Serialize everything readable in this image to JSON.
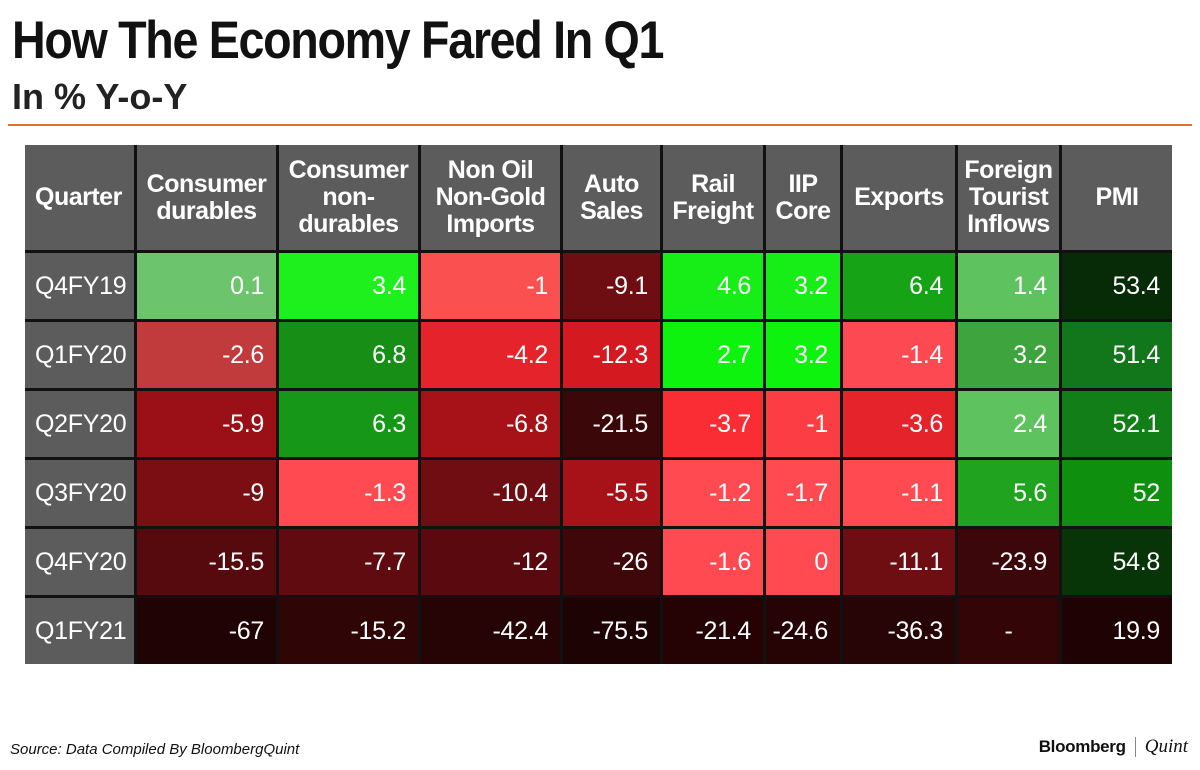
{
  "header": {
    "title": "How The Economy Fared In Q1",
    "subtitle": "In % Y-o-Y"
  },
  "footer": {
    "source": "Source: Data Compiled By BloombergQuint",
    "brand_primary": "Bloomberg",
    "brand_secondary": "Quint"
  },
  "colors": {
    "header_bg": "#5c5c5c",
    "accent_rule": "#e0712b",
    "grid": "#111111"
  },
  "chart_data": {
    "type": "heatmap",
    "title": "How The Economy Fared In Q1",
    "subtitle": "In % Y-o-Y",
    "row_header": "Quarter",
    "columns": [
      {
        "label": "Consumer durables",
        "lines": [
          "Consumer",
          "durables"
        ]
      },
      {
        "label": "Consumer non-durables",
        "lines": [
          "Consumer",
          "non-",
          "durables"
        ]
      },
      {
        "label": "Non Oil Non-Gold Imports",
        "lines": [
          "Non Oil",
          "Non-Gold",
          "Imports"
        ]
      },
      {
        "label": "Auto Sales",
        "lines": [
          "Auto",
          "Sales"
        ]
      },
      {
        "label": "Rail Freight",
        "lines": [
          "Rail",
          "Freight"
        ]
      },
      {
        "label": "IIP Core",
        "lines": [
          "IIP",
          "Core"
        ]
      },
      {
        "label": "Exports",
        "lines": [
          "Exports"
        ]
      },
      {
        "label": "Foreign Tourist Inflows",
        "lines": [
          "Foreign",
          "Tourist",
          "Inflows"
        ]
      },
      {
        "label": "PMI",
        "lines": [
          "PMI"
        ]
      }
    ],
    "rows": [
      "Q4FY19",
      "Q1FY20",
      "Q2FY20",
      "Q3FY20",
      "Q4FY20",
      "Q1FY21"
    ],
    "values": [
      [
        "0.1",
        "3.4",
        "-1",
        "-9.1",
        "4.6",
        "3.2",
        "6.4",
        "1.4",
        "53.4"
      ],
      [
        "-2.6",
        "6.8",
        "-4.2",
        "-12.3",
        "2.7",
        "3.2",
        "-1.4",
        "3.2",
        "51.4"
      ],
      [
        "-5.9",
        "6.3",
        "-6.8",
        "-21.5",
        "-3.7",
        "-1",
        "-3.6",
        "2.4",
        "52.1"
      ],
      [
        "-9",
        "-1.3",
        "-10.4",
        "-5.5",
        "-1.2",
        "-1.7",
        "-1.1",
        "5.6",
        "52"
      ],
      [
        "-15.5",
        "-7.7",
        "-12",
        "-26",
        "-1.6",
        "0",
        "-11.1",
        "-23.9",
        "54.8"
      ],
      [
        "-67",
        "-15.2",
        "-42.4",
        "-75.5",
        "-21.4",
        "-24.6",
        "-36.3",
        "-",
        "19.9"
      ]
    ],
    "cell_colors": [
      [
        "#6cc56c",
        "#1ef01e",
        "#fb5050",
        "#6e0e12",
        "#17ed17",
        "#17ed17",
        "#16a316",
        "#5ec25e",
        "#062b06"
      ],
      [
        "#c13a3c",
        "#178f17",
        "#e5232a",
        "#d41920",
        "#0ef30e",
        "#0ef30e",
        "#fd4a52",
        "#3ea43e",
        "#12761a"
      ],
      [
        "#9a1016",
        "#179717",
        "#a71218",
        "#3c0708",
        "#fa2d34",
        "#fc3d43",
        "#e5232a",
        "#5ec25e",
        "#117e18"
      ],
      [
        "#7a0e12",
        "#ff4a52",
        "#6f0d12",
        "#a71218",
        "#ff4a52",
        "#ff4a52",
        "#ff4a52",
        "#20a420",
        "#0e8f0e"
      ],
      [
        "#560a0e",
        "#600b10",
        "#5a0a0e",
        "#3f0709",
        "#ff4a52",
        "#ff4a52",
        "#6e0e12",
        "#3c070a",
        "#073507"
      ],
      [
        "#200304",
        "#2f0506",
        "#260405",
        "#1d0304",
        "#250304",
        "#260405",
        "#270405",
        "#330506",
        "#1f0304"
      ]
    ]
  }
}
